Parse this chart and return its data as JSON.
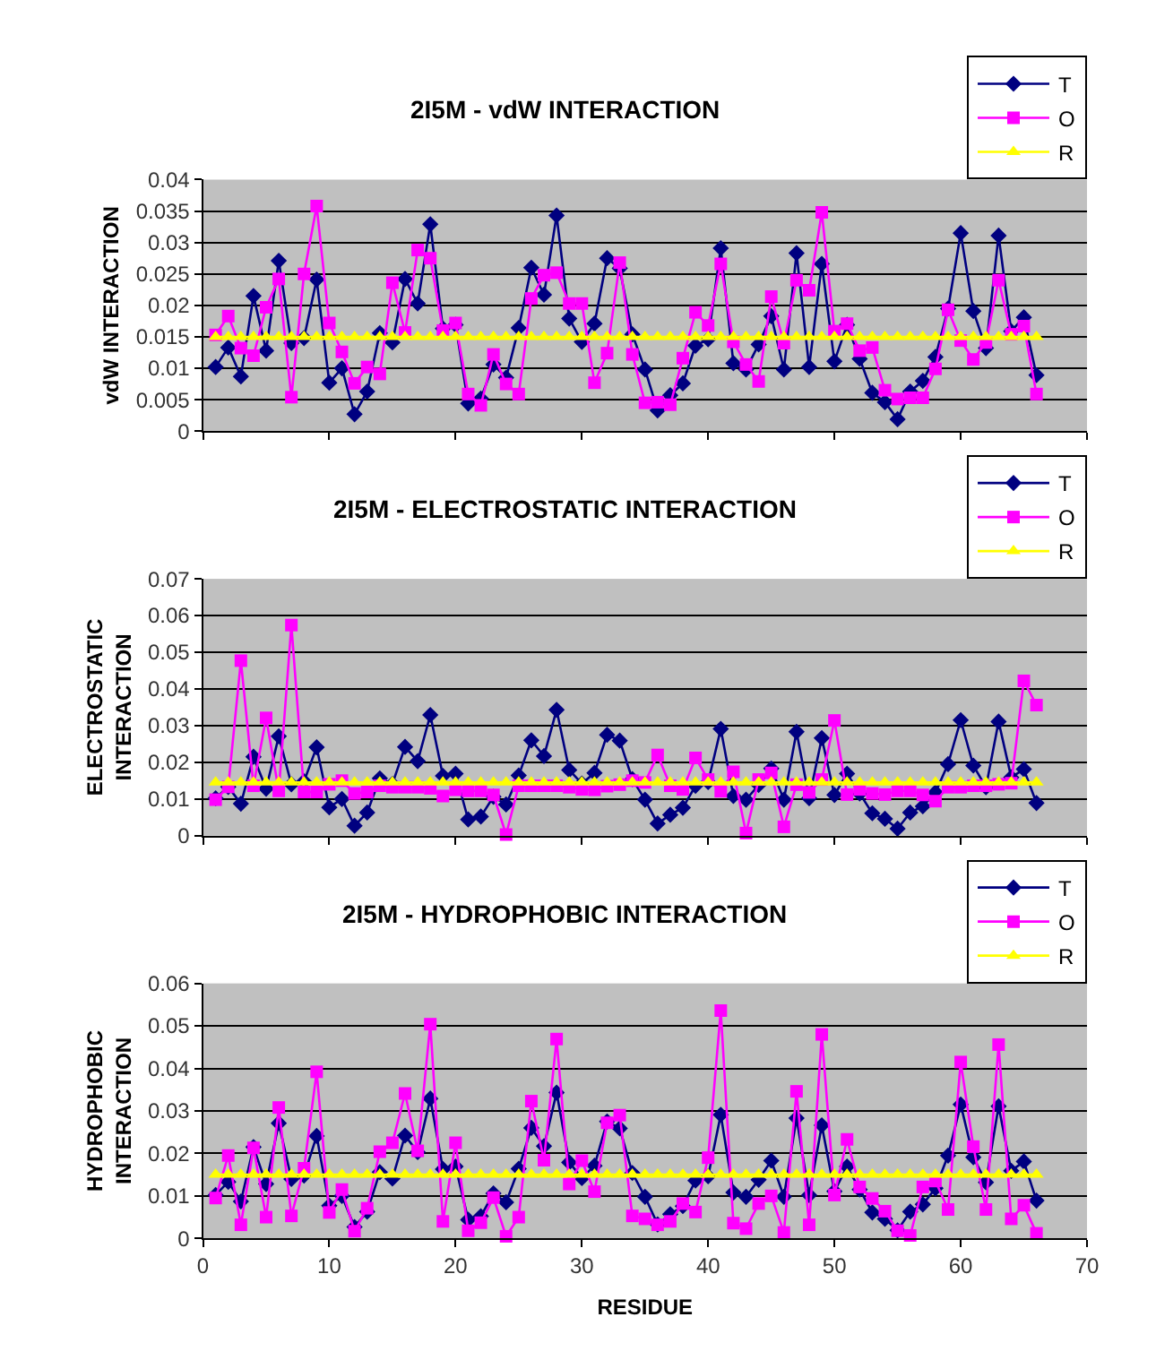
{
  "chart_data": [
    {
      "type": "line",
      "title": "2I5M - vdW INTERACTION",
      "ylabel": "vdW INTERACTION",
      "xlim": [
        0,
        70
      ],
      "xticks": [
        {
          "value": 0,
          "label": null
        },
        {
          "value": 10,
          "label": null
        },
        {
          "value": 20,
          "label": null
        },
        {
          "value": 30,
          "label": null
        },
        {
          "value": 40,
          "label": null
        },
        {
          "value": 50,
          "label": null
        },
        {
          "value": 60,
          "label": null
        },
        {
          "value": 70,
          "label": null
        }
      ],
      "ylim": [
        0,
        0.04
      ],
      "yticks": [
        0,
        0.005,
        0.01,
        0.015,
        0.02,
        0.025,
        0.03,
        0.035,
        0.04
      ],
      "tick_labels": "y",
      "grid": "y",
      "legend": "top right",
      "x": [
        1,
        2,
        3,
        4,
        5,
        6,
        7,
        8,
        9,
        10,
        11,
        12,
        13,
        14,
        15,
        16,
        17,
        18,
        19,
        20,
        21,
        22,
        23,
        24,
        25,
        26,
        27,
        28,
        29,
        30,
        31,
        32,
        33,
        34,
        35,
        36,
        37,
        38,
        39,
        40,
        41,
        42,
        43,
        44,
        45,
        46,
        47,
        48,
        49,
        50,
        51,
        52,
        53,
        54,
        55,
        56,
        57,
        58,
        59,
        60,
        61,
        62,
        63,
        64,
        65,
        66
      ],
      "series": [
        {
          "name": "T",
          "color": "#000080",
          "marker": "diamond",
          "values": [
            0.0102,
            0.0133,
            0.0087,
            0.0215,
            0.0128,
            0.0271,
            0.014,
            0.0148,
            0.0241,
            0.0077,
            0.01,
            0.0027,
            0.0063,
            0.0156,
            0.0141,
            0.0242,
            0.0203,
            0.0329,
            0.0163,
            0.0169,
            0.0044,
            0.0052,
            0.0106,
            0.0085,
            0.0164,
            0.026,
            0.0217,
            0.0343,
            0.0179,
            0.0142,
            0.0171,
            0.0275,
            0.0259,
            0.0154,
            0.0098,
            0.0033,
            0.0057,
            0.0076,
            0.0136,
            0.0146,
            0.0291,
            0.0108,
            0.0098,
            0.0138,
            0.0183,
            0.0098,
            0.0283,
            0.0102,
            0.0266,
            0.0111,
            0.0169,
            0.0115,
            0.0061,
            0.0046,
            0.0019,
            0.0063,
            0.008,
            0.0118,
            0.0195,
            0.0315,
            0.0191,
            0.0132,
            0.0311,
            0.0159,
            0.0181,
            0.0089
          ]
        },
        {
          "name": "O",
          "color": "#ff00ff",
          "marker": "square",
          "values": [
            0.0153,
            0.0183,
            0.0132,
            0.012,
            0.0197,
            0.0242,
            0.0054,
            0.025,
            0.0358,
            0.0172,
            0.0126,
            0.0076,
            0.0102,
            0.0091,
            0.0236,
            0.0157,
            0.0288,
            0.0275,
            0.016,
            0.0172,
            0.0059,
            0.0041,
            0.0122,
            0.0075,
            0.0059,
            0.0211,
            0.0248,
            0.0252,
            0.0203,
            0.0203,
            0.0077,
            0.0124,
            0.0268,
            0.0122,
            0.0045,
            0.0046,
            0.0042,
            0.0116,
            0.0189,
            0.0168,
            0.0266,
            0.0142,
            0.0106,
            0.0079,
            0.0214,
            0.014,
            0.024,
            0.0224,
            0.0348,
            0.0159,
            0.0171,
            0.0128,
            0.0133,
            0.0065,
            0.0051,
            0.0053,
            0.0053,
            0.0099,
            0.0193,
            0.0144,
            0.0114,
            0.0141,
            0.024,
            0.0154,
            0.0167,
            0.0059
          ]
        },
        {
          "name": "R",
          "color": "#ffff00",
          "marker": "triangle",
          "values": [
            0.015,
            0.015,
            0.015,
            0.015,
            0.015,
            0.015,
            0.015,
            0.015,
            0.015,
            0.015,
            0.015,
            0.015,
            0.015,
            0.015,
            0.015,
            0.015,
            0.015,
            0.015,
            0.015,
            0.015,
            0.015,
            0.015,
            0.015,
            0.015,
            0.015,
            0.015,
            0.015,
            0.015,
            0.015,
            0.015,
            0.015,
            0.015,
            0.015,
            0.015,
            0.015,
            0.015,
            0.015,
            0.015,
            0.015,
            0.015,
            0.015,
            0.015,
            0.015,
            0.015,
            0.015,
            0.015,
            0.015,
            0.015,
            0.015,
            0.015,
            0.015,
            0.015,
            0.015,
            0.015,
            0.015,
            0.015,
            0.015,
            0.015,
            0.015,
            0.015,
            0.015,
            0.015,
            0.015,
            0.015,
            0.015,
            0.015
          ]
        }
      ]
    },
    {
      "type": "line",
      "title": "2I5M - ELECTROSTATIC INTERACTION",
      "ylabel": "ELECTROSTATIC INTERACTION",
      "xlim": [
        0,
        70
      ],
      "xticks": [
        {
          "value": 0,
          "label": null
        },
        {
          "value": 10,
          "label": null
        },
        {
          "value": 20,
          "label": null
        },
        {
          "value": 30,
          "label": null
        },
        {
          "value": 40,
          "label": null
        },
        {
          "value": 50,
          "label": null
        },
        {
          "value": 60,
          "label": null
        },
        {
          "value": 70,
          "label": null
        }
      ],
      "ylim": [
        0,
        0.07
      ],
      "yticks": [
        0,
        0.01,
        0.02,
        0.03,
        0.04,
        0.05,
        0.06,
        0.07
      ],
      "tick_labels": "y",
      "grid": "y",
      "legend": "top right",
      "x": [
        1,
        2,
        3,
        4,
        5,
        6,
        7,
        8,
        9,
        10,
        11,
        12,
        13,
        14,
        15,
        16,
        17,
        18,
        19,
        20,
        21,
        22,
        23,
        24,
        25,
        26,
        27,
        28,
        29,
        30,
        31,
        32,
        33,
        34,
        35,
        36,
        37,
        38,
        39,
        40,
        41,
        42,
        43,
        44,
        45,
        46,
        47,
        48,
        49,
        50,
        51,
        52,
        53,
        54,
        55,
        56,
        57,
        58,
        59,
        60,
        61,
        62,
        63,
        64,
        65,
        66
      ],
      "series": [
        {
          "name": "T",
          "color": "#000080",
          "marker": "diamond",
          "values": [
            0.0102,
            0.0133,
            0.0087,
            0.0215,
            0.0128,
            0.0271,
            0.014,
            0.0148,
            0.0241,
            0.0077,
            0.01,
            0.0027,
            0.0063,
            0.0156,
            0.0141,
            0.0242,
            0.0203,
            0.0329,
            0.0163,
            0.0169,
            0.0044,
            0.0052,
            0.0106,
            0.0085,
            0.0164,
            0.026,
            0.0217,
            0.0343,
            0.0179,
            0.0142,
            0.0171,
            0.0275,
            0.0259,
            0.0154,
            0.0098,
            0.0033,
            0.0057,
            0.0076,
            0.0136,
            0.0146,
            0.0291,
            0.0108,
            0.0098,
            0.0138,
            0.0183,
            0.0098,
            0.0283,
            0.0102,
            0.0266,
            0.0111,
            0.0169,
            0.0115,
            0.0061,
            0.0046,
            0.0019,
            0.0063,
            0.008,
            0.0118,
            0.0195,
            0.0315,
            0.0191,
            0.0132,
            0.0311,
            0.0159,
            0.0181,
            0.0089
          ]
        },
        {
          "name": "O",
          "color": "#ff00ff",
          "marker": "square",
          "values": [
            0.0098,
            0.0133,
            0.0477,
            0.0136,
            0.0321,
            0.0122,
            0.0574,
            0.0119,
            0.0119,
            0.014,
            0.015,
            0.0115,
            0.0119,
            0.0136,
            0.0132,
            0.0132,
            0.0132,
            0.0129,
            0.0108,
            0.0125,
            0.0122,
            0.0122,
            0.0111,
            0.0003,
            0.0136,
            0.0136,
            0.0136,
            0.0136,
            0.0132,
            0.0126,
            0.0125,
            0.0135,
            0.0139,
            0.015,
            0.0145,
            0.022,
            0.0136,
            0.0126,
            0.0212,
            0.0153,
            0.0121,
            0.0174,
            0.0007,
            0.0153,
            0.0171,
            0.0024,
            0.0139,
            0.0118,
            0.0153,
            0.0314,
            0.0112,
            0.0126,
            0.0115,
            0.0112,
            0.0122,
            0.0122,
            0.0111,
            0.0094,
            0.0132,
            0.0132,
            0.0136,
            0.0136,
            0.014,
            0.0143,
            0.0422,
            0.0356
          ]
        },
        {
          "name": "R",
          "color": "#ffff00",
          "marker": "triangle",
          "values": [
            0.0145,
            0.0145,
            0.0145,
            0.0145,
            0.0145,
            0.0145,
            0.0145,
            0.0145,
            0.0145,
            0.0145,
            0.0145,
            0.0145,
            0.0145,
            0.0145,
            0.0145,
            0.0145,
            0.0145,
            0.0145,
            0.0145,
            0.0145,
            0.0145,
            0.0145,
            0.0145,
            0.0145,
            0.0145,
            0.0145,
            0.0145,
            0.0145,
            0.0145,
            0.0145,
            0.0145,
            0.0145,
            0.0145,
            0.0145,
            0.0145,
            0.0145,
            0.0145,
            0.0145,
            0.0145,
            0.0145,
            0.0145,
            0.0145,
            0.0145,
            0.0145,
            0.0145,
            0.0145,
            0.0145,
            0.0145,
            0.0145,
            0.0145,
            0.0145,
            0.0145,
            0.0145,
            0.0145,
            0.0145,
            0.0145,
            0.0145,
            0.0145,
            0.0145,
            0.0145,
            0.0145,
            0.0145,
            0.0145,
            0.0145,
            0.0145,
            0.0145
          ]
        }
      ]
    },
    {
      "type": "line",
      "title": "2I5M - HYDROPHOBIC INTERACTION",
      "ylabel": "HYDROPHOBIC INTERACTION",
      "xlabel": "RESIDUE",
      "xlim": [
        0,
        70
      ],
      "xticks": [
        0,
        10,
        20,
        30,
        40,
        50,
        60,
        70
      ],
      "ylim": [
        0,
        0.06
      ],
      "yticks": [
        0,
        0.01,
        0.02,
        0.03,
        0.04,
        0.05,
        0.06
      ],
      "grid": "y",
      "legend": "top right",
      "x": [
        1,
        2,
        3,
        4,
        5,
        6,
        7,
        8,
        9,
        10,
        11,
        12,
        13,
        14,
        15,
        16,
        17,
        18,
        19,
        20,
        21,
        22,
        23,
        24,
        25,
        26,
        27,
        28,
        29,
        30,
        31,
        32,
        33,
        34,
        35,
        36,
        37,
        38,
        39,
        40,
        41,
        42,
        43,
        44,
        45,
        46,
        47,
        48,
        49,
        50,
        51,
        52,
        53,
        54,
        55,
        56,
        57,
        58,
        59,
        60,
        61,
        62,
        63,
        64,
        65,
        66
      ],
      "series": [
        {
          "name": "T",
          "color": "#000080",
          "marker": "diamond",
          "values": [
            0.0102,
            0.0133,
            0.0087,
            0.0215,
            0.0128,
            0.0271,
            0.014,
            0.0148,
            0.0241,
            0.0077,
            0.01,
            0.0027,
            0.0063,
            0.0156,
            0.0141,
            0.0242,
            0.0203,
            0.0329,
            0.0163,
            0.0169,
            0.0044,
            0.0052,
            0.0106,
            0.0085,
            0.0164,
            0.026,
            0.0217,
            0.0343,
            0.0179,
            0.0142,
            0.0171,
            0.0275,
            0.0259,
            0.0154,
            0.0098,
            0.0033,
            0.0057,
            0.0076,
            0.0136,
            0.0146,
            0.0291,
            0.0108,
            0.0098,
            0.0138,
            0.0183,
            0.0098,
            0.0283,
            0.0102,
            0.0266,
            0.0111,
            0.0169,
            0.0115,
            0.0061,
            0.0046,
            0.0019,
            0.0063,
            0.008,
            0.0118,
            0.0195,
            0.0315,
            0.0191,
            0.0132,
            0.0311,
            0.0159,
            0.0181,
            0.0089
          ]
        },
        {
          "name": "O",
          "color": "#ff00ff",
          "marker": "square",
          "values": [
            0.0095,
            0.0195,
            0.0032,
            0.0213,
            0.005,
            0.0308,
            0.0053,
            0.0165,
            0.0392,
            0.0061,
            0.0115,
            0.0017,
            0.0071,
            0.0204,
            0.0225,
            0.0341,
            0.0206,
            0.0504,
            0.004,
            0.0225,
            0.0018,
            0.0037,
            0.0096,
            0.0005,
            0.005,
            0.0323,
            0.0184,
            0.0469,
            0.0128,
            0.0183,
            0.011,
            0.0272,
            0.029,
            0.0053,
            0.0046,
            0.0032,
            0.004,
            0.0082,
            0.0062,
            0.019,
            0.0536,
            0.0036,
            0.0023,
            0.0082,
            0.01,
            0.0014,
            0.0346,
            0.0032,
            0.048,
            0.0102,
            0.0233,
            0.0121,
            0.0094,
            0.0064,
            0.0018,
            0.0007,
            0.0121,
            0.0135,
            0.0068,
            0.0415,
            0.0216,
            0.0068,
            0.0456,
            0.0046,
            0.0078,
            0.0012
          ]
        },
        {
          "name": "R",
          "color": "#ffff00",
          "marker": "triangle",
          "values": [
            0.015,
            0.015,
            0.015,
            0.015,
            0.015,
            0.015,
            0.015,
            0.015,
            0.015,
            0.015,
            0.015,
            0.015,
            0.015,
            0.015,
            0.015,
            0.015,
            0.015,
            0.015,
            0.015,
            0.015,
            0.015,
            0.015,
            0.015,
            0.015,
            0.015,
            0.015,
            0.015,
            0.015,
            0.015,
            0.015,
            0.015,
            0.015,
            0.015,
            0.015,
            0.015,
            0.015,
            0.015,
            0.015,
            0.015,
            0.015,
            0.015,
            0.015,
            0.015,
            0.015,
            0.015,
            0.015,
            0.015,
            0.015,
            0.015,
            0.015,
            0.015,
            0.015,
            0.015,
            0.015,
            0.015,
            0.015,
            0.015,
            0.015,
            0.015,
            0.015,
            0.015,
            0.015,
            0.015,
            0.015,
            0.015,
            0.015
          ]
        }
      ]
    }
  ]
}
